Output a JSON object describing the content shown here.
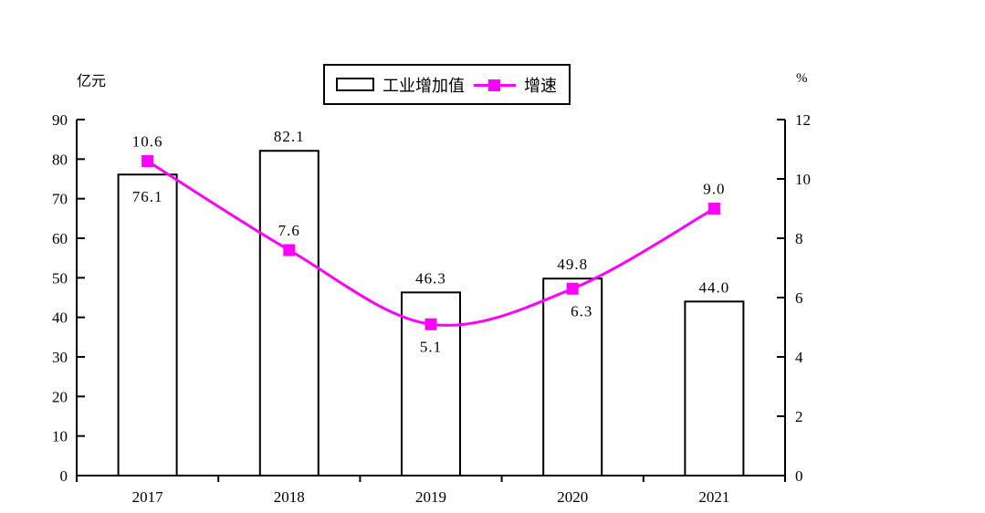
{
  "chart_data": {
    "type": "combo",
    "categories": [
      "2017",
      "2018",
      "2019",
      "2020",
      "2021"
    ],
    "series": [
      {
        "name": "工业增加值",
        "type": "bar",
        "axis": "left",
        "values": [
          76.1,
          82.1,
          46.3,
          49.8,
          44.0
        ],
        "labels": [
          "76.1",
          "82.1",
          "46.3",
          "49.8",
          "44.0"
        ],
        "label_positions": [
          "inside-top",
          "above",
          "above",
          "above",
          "above"
        ],
        "fill": "#ffffff",
        "stroke": "#000000"
      },
      {
        "name": "增速",
        "type": "line",
        "axis": "right",
        "values": [
          10.6,
          7.6,
          5.1,
          6.3,
          9.0
        ],
        "labels": [
          "10.6",
          "7.6",
          "5.1",
          "6.3",
          "9.0"
        ],
        "label_positions": [
          "above",
          "above",
          "below",
          "below-right",
          "above"
        ],
        "color": "#ff00ff",
        "marker": "filled-square",
        "smooth": true
      }
    ],
    "left_axis": {
      "title": "亿元",
      "min": 0,
      "max": 90,
      "ticks": [
        "0",
        "10",
        "20",
        "30",
        "40",
        "50",
        "60",
        "70",
        "80",
        "90"
      ]
    },
    "right_axis": {
      "title": "%",
      "min": 0,
      "max": 12,
      "ticks": [
        "0",
        "2",
        "4",
        "6",
        "8",
        "10",
        "12"
      ]
    },
    "x_axis": {
      "labels": [
        "2017",
        "2018",
        "2019",
        "2020",
        "2021"
      ]
    },
    "legend": {
      "position": "top-center",
      "items": [
        "工业增加值",
        "增速"
      ]
    },
    "grid": false,
    "colors": {
      "line": "#ff00ff",
      "bar_fill": "#ffffff",
      "bar_stroke": "#000000",
      "axis": "#000000",
      "text": "#000000",
      "background": "#ffffff"
    }
  }
}
